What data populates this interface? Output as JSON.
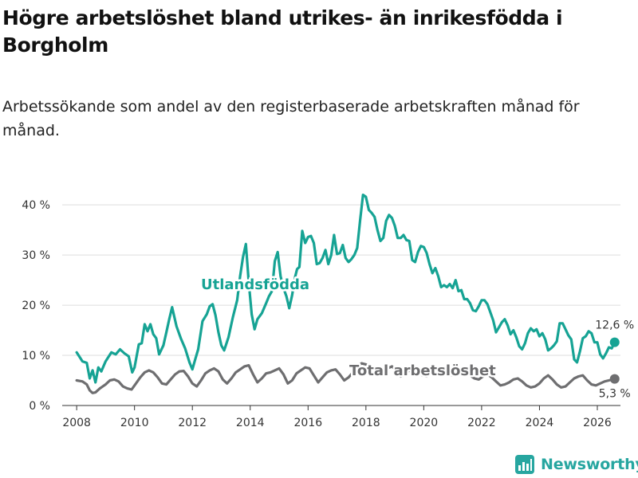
{
  "title": "Högre arbetslöshet bland utrikes- än inrikesfödda i Borgholm",
  "subtitle": "Arbetssökande som andel av den registerbaserade arbetskraften månad för månad.",
  "brand": {
    "name": "Newsworthy",
    "color": "#27a6a0"
  },
  "colors": {
    "utlandsfodda": "#16a394",
    "total": "#6e6e70",
    "grid": "#dddddd",
    "axis": "#333333"
  },
  "chart_data": {
    "type": "line",
    "title": "Högre arbetslöshet bland utrikes- än inrikesfödda i Borgholm",
    "xlabel": "",
    "ylabel": "",
    "xlim": [
      2007.5,
      2026.8
    ],
    "ylim": [
      0,
      44
    ],
    "x_ticks": [
      2008,
      2010,
      2012,
      2014,
      2016,
      2018,
      2020,
      2022,
      2024,
      2026
    ],
    "y_ticks": [
      0,
      10,
      20,
      30,
      40
    ],
    "y_tick_labels": [
      "0 %",
      "10 %",
      "20 %",
      "30 %",
      "40 %"
    ],
    "series": [
      {
        "name": "Utlandsfödda",
        "label": "Utlandsfödda",
        "end_label": "12,6 %",
        "points": [
          [
            2008.0,
            10.6
          ],
          [
            2008.2,
            8.8
          ],
          [
            2008.35,
            8.5
          ],
          [
            2008.45,
            5.4
          ],
          [
            2008.55,
            7.0
          ],
          [
            2008.65,
            4.6
          ],
          [
            2008.75,
            7.6
          ],
          [
            2008.85,
            6.8
          ],
          [
            2009.0,
            8.8
          ],
          [
            2009.2,
            10.6
          ],
          [
            2009.35,
            10.2
          ],
          [
            2009.5,
            11.2
          ],
          [
            2009.65,
            10.4
          ],
          [
            2009.8,
            9.8
          ],
          [
            2009.92,
            6.6
          ],
          [
            2010.0,
            7.6
          ],
          [
            2010.15,
            12.2
          ],
          [
            2010.25,
            12.4
          ],
          [
            2010.35,
            16.2
          ],
          [
            2010.45,
            14.8
          ],
          [
            2010.55,
            16.2
          ],
          [
            2010.65,
            14.2
          ],
          [
            2010.75,
            13.4
          ],
          [
            2010.85,
            10.2
          ],
          [
            2011.0,
            12.0
          ],
          [
            2011.1,
            14.6
          ],
          [
            2011.2,
            17.2
          ],
          [
            2011.3,
            19.6
          ],
          [
            2011.45,
            15.8
          ],
          [
            2011.6,
            13.4
          ],
          [
            2011.75,
            11.4
          ],
          [
            2011.9,
            8.6
          ],
          [
            2012.0,
            7.2
          ],
          [
            2012.1,
            9.2
          ],
          [
            2012.2,
            11.2
          ],
          [
            2012.35,
            16.8
          ],
          [
            2012.5,
            18.2
          ],
          [
            2012.6,
            19.8
          ],
          [
            2012.7,
            20.2
          ],
          [
            2012.8,
            18.0
          ],
          [
            2012.9,
            14.6
          ],
          [
            2013.0,
            12.0
          ],
          [
            2013.1,
            11.0
          ],
          [
            2013.25,
            13.6
          ],
          [
            2013.4,
            17.6
          ],
          [
            2013.55,
            21.0
          ],
          [
            2013.65,
            25.8
          ],
          [
            2013.75,
            29.6
          ],
          [
            2013.85,
            32.2
          ],
          [
            2013.95,
            24.6
          ],
          [
            2014.05,
            18.2
          ],
          [
            2014.15,
            15.2
          ],
          [
            2014.25,
            17.2
          ],
          [
            2014.4,
            18.4
          ],
          [
            2014.55,
            20.4
          ],
          [
            2014.65,
            21.8
          ],
          [
            2014.75,
            22.8
          ],
          [
            2014.85,
            28.8
          ],
          [
            2014.95,
            30.6
          ],
          [
            2015.05,
            25.8
          ],
          [
            2015.15,
            23.4
          ],
          [
            2015.25,
            21.8
          ],
          [
            2015.35,
            19.4
          ],
          [
            2015.45,
            22.0
          ],
          [
            2015.55,
            25.6
          ],
          [
            2015.62,
            27.2
          ],
          [
            2015.7,
            27.6
          ],
          [
            2015.8,
            34.8
          ],
          [
            2015.9,
            32.4
          ],
          [
            2016.0,
            33.6
          ],
          [
            2016.1,
            33.8
          ],
          [
            2016.2,
            32.4
          ],
          [
            2016.3,
            28.2
          ],
          [
            2016.4,
            28.4
          ],
          [
            2016.5,
            29.4
          ],
          [
            2016.6,
            31.0
          ],
          [
            2016.7,
            28.2
          ],
          [
            2016.8,
            30.0
          ],
          [
            2016.9,
            34.0
          ],
          [
            2017.0,
            30.2
          ],
          [
            2017.1,
            30.4
          ],
          [
            2017.2,
            32.0
          ],
          [
            2017.3,
            29.4
          ],
          [
            2017.4,
            28.6
          ],
          [
            2017.5,
            29.2
          ],
          [
            2017.6,
            30.0
          ],
          [
            2017.7,
            31.4
          ],
          [
            2017.8,
            37.0
          ],
          [
            2017.9,
            42.0
          ],
          [
            2018.0,
            41.6
          ],
          [
            2018.1,
            39.0
          ],
          [
            2018.2,
            38.4
          ],
          [
            2018.3,
            37.6
          ],
          [
            2018.4,
            35.0
          ],
          [
            2018.5,
            32.8
          ],
          [
            2018.6,
            33.4
          ],
          [
            2018.7,
            36.8
          ],
          [
            2018.8,
            38.0
          ],
          [
            2018.9,
            37.4
          ],
          [
            2019.0,
            35.8
          ],
          [
            2019.1,
            33.4
          ],
          [
            2019.2,
            33.4
          ],
          [
            2019.3,
            34.0
          ],
          [
            2019.4,
            33.0
          ],
          [
            2019.5,
            32.8
          ],
          [
            2019.6,
            29.0
          ],
          [
            2019.7,
            28.6
          ],
          [
            2019.8,
            30.6
          ],
          [
            2019.9,
            31.8
          ],
          [
            2020.0,
            31.6
          ],
          [
            2020.1,
            30.4
          ],
          [
            2020.2,
            28.2
          ],
          [
            2020.3,
            26.4
          ],
          [
            2020.4,
            27.4
          ],
          [
            2020.5,
            25.8
          ],
          [
            2020.6,
            23.6
          ],
          [
            2020.7,
            24.0
          ],
          [
            2020.8,
            23.6
          ],
          [
            2020.9,
            24.2
          ],
          [
            2021.0,
            23.4
          ],
          [
            2021.1,
            25.0
          ],
          [
            2021.2,
            22.8
          ],
          [
            2021.3,
            23.0
          ],
          [
            2021.4,
            21.2
          ],
          [
            2021.5,
            21.2
          ],
          [
            2021.6,
            20.4
          ],
          [
            2021.7,
            19.0
          ],
          [
            2021.8,
            18.8
          ],
          [
            2021.9,
            19.8
          ],
          [
            2022.0,
            21.0
          ],
          [
            2022.1,
            21.0
          ],
          [
            2022.2,
            20.2
          ],
          [
            2022.3,
            18.6
          ],
          [
            2022.4,
            17.0
          ],
          [
            2022.5,
            14.6
          ],
          [
            2022.6,
            15.6
          ],
          [
            2022.7,
            16.6
          ],
          [
            2022.8,
            17.2
          ],
          [
            2022.9,
            16.0
          ],
          [
            2023.0,
            14.2
          ],
          [
            2023.1,
            15.0
          ],
          [
            2023.2,
            13.6
          ],
          [
            2023.3,
            11.8
          ],
          [
            2023.4,
            11.2
          ],
          [
            2023.5,
            12.4
          ],
          [
            2023.6,
            14.4
          ],
          [
            2023.7,
            15.4
          ],
          [
            2023.8,
            14.8
          ],
          [
            2023.9,
            15.2
          ],
          [
            2024.0,
            13.8
          ],
          [
            2024.1,
            14.4
          ],
          [
            2024.2,
            13.2
          ],
          [
            2024.3,
            11.0
          ],
          [
            2024.4,
            11.4
          ],
          [
            2024.5,
            12.0
          ],
          [
            2024.6,
            12.8
          ],
          [
            2024.7,
            16.4
          ],
          [
            2024.8,
            16.4
          ],
          [
            2024.9,
            15.2
          ],
          [
            2025.0,
            14.0
          ],
          [
            2025.1,
            13.2
          ],
          [
            2025.2,
            9.2
          ],
          [
            2025.3,
            8.6
          ],
          [
            2025.4,
            10.8
          ],
          [
            2025.5,
            13.4
          ],
          [
            2025.6,
            13.8
          ],
          [
            2025.7,
            14.8
          ],
          [
            2025.8,
            14.4
          ],
          [
            2025.9,
            12.6
          ],
          [
            2026.0,
            12.6
          ],
          [
            2026.1,
            10.2
          ],
          [
            2026.2,
            9.4
          ],
          [
            2026.3,
            10.4
          ],
          [
            2026.4,
            11.6
          ],
          [
            2026.5,
            11.4
          ],
          [
            2026.6,
            12.6
          ]
        ]
      },
      {
        "name": "Total arbetslöshet",
        "label": "Total arbetslöshet",
        "end_label": "5,3 %",
        "points": [
          [
            2008.0,
            5.0
          ],
          [
            2008.2,
            4.8
          ],
          [
            2008.35,
            4.2
          ],
          [
            2008.45,
            3.0
          ],
          [
            2008.55,
            2.5
          ],
          [
            2008.65,
            2.6
          ],
          [
            2008.8,
            3.4
          ],
          [
            2009.0,
            4.2
          ],
          [
            2009.15,
            5.0
          ],
          [
            2009.3,
            5.2
          ],
          [
            2009.45,
            4.8
          ],
          [
            2009.6,
            3.8
          ],
          [
            2009.75,
            3.4
          ],
          [
            2009.9,
            3.2
          ],
          [
            2010.05,
            4.4
          ],
          [
            2010.2,
            5.6
          ],
          [
            2010.35,
            6.6
          ],
          [
            2010.5,
            7.0
          ],
          [
            2010.65,
            6.6
          ],
          [
            2010.8,
            5.6
          ],
          [
            2010.95,
            4.4
          ],
          [
            2011.1,
            4.2
          ],
          [
            2011.25,
            5.2
          ],
          [
            2011.4,
            6.2
          ],
          [
            2011.55,
            6.8
          ],
          [
            2011.7,
            6.9
          ],
          [
            2011.85,
            5.8
          ],
          [
            2012.0,
            4.4
          ],
          [
            2012.15,
            3.8
          ],
          [
            2012.3,
            5.0
          ],
          [
            2012.45,
            6.4
          ],
          [
            2012.6,
            7.0
          ],
          [
            2012.75,
            7.4
          ],
          [
            2012.9,
            6.8
          ],
          [
            2013.05,
            5.2
          ],
          [
            2013.2,
            4.4
          ],
          [
            2013.35,
            5.4
          ],
          [
            2013.5,
            6.6
          ],
          [
            2013.65,
            7.2
          ],
          [
            2013.8,
            7.8
          ],
          [
            2013.95,
            8.0
          ],
          [
            2014.1,
            6.2
          ],
          [
            2014.25,
            4.6
          ],
          [
            2014.4,
            5.4
          ],
          [
            2014.55,
            6.4
          ],
          [
            2014.7,
            6.6
          ],
          [
            2014.85,
            7.0
          ],
          [
            2015.0,
            7.4
          ],
          [
            2015.15,
            6.2
          ],
          [
            2015.3,
            4.4
          ],
          [
            2015.45,
            5.0
          ],
          [
            2015.6,
            6.4
          ],
          [
            2015.75,
            7.0
          ],
          [
            2015.9,
            7.6
          ],
          [
            2016.05,
            7.4
          ],
          [
            2016.2,
            6.0
          ],
          [
            2016.35,
            4.6
          ],
          [
            2016.5,
            5.6
          ],
          [
            2016.65,
            6.6
          ],
          [
            2016.8,
            7.0
          ],
          [
            2016.95,
            7.2
          ],
          [
            2017.1,
            6.2
          ],
          [
            2017.25,
            5.0
          ],
          [
            2017.4,
            5.6
          ],
          [
            2017.55,
            6.6
          ],
          [
            2017.7,
            7.8
          ],
          [
            2017.85,
            8.4
          ],
          [
            2018.0,
            8.2
          ],
          [
            2018.15,
            7.8
          ],
          [
            2018.3,
            6.6
          ],
          [
            2018.45,
            6.0
          ],
          [
            2018.6,
            6.6
          ],
          [
            2018.75,
            7.4
          ],
          [
            2018.9,
            7.8
          ],
          [
            2019.05,
            7.0
          ],
          [
            2019.2,
            5.8
          ],
          [
            2019.35,
            6.2
          ],
          [
            2019.5,
            7.0
          ],
          [
            2019.65,
            7.4
          ],
          [
            2019.8,
            7.0
          ],
          [
            2019.95,
            6.0
          ],
          [
            2020.1,
            5.8
          ],
          [
            2020.25,
            6.8
          ],
          [
            2020.4,
            7.2
          ],
          [
            2020.55,
            7.6
          ],
          [
            2020.7,
            7.0
          ],
          [
            2020.85,
            6.2
          ],
          [
            2021.0,
            6.0
          ],
          [
            2021.15,
            6.6
          ],
          [
            2021.3,
            7.0
          ],
          [
            2021.45,
            6.8
          ],
          [
            2021.6,
            6.0
          ],
          [
            2021.75,
            5.4
          ],
          [
            2021.9,
            5.2
          ],
          [
            2022.05,
            5.8
          ],
          [
            2022.2,
            6.2
          ],
          [
            2022.35,
            5.6
          ],
          [
            2022.5,
            4.8
          ],
          [
            2022.65,
            4.0
          ],
          [
            2022.8,
            4.2
          ],
          [
            2022.95,
            4.6
          ],
          [
            2023.1,
            5.2
          ],
          [
            2023.25,
            5.4
          ],
          [
            2023.4,
            4.8
          ],
          [
            2023.55,
            4.0
          ],
          [
            2023.7,
            3.6
          ],
          [
            2023.85,
            3.8
          ],
          [
            2024.0,
            4.4
          ],
          [
            2024.15,
            5.4
          ],
          [
            2024.3,
            6.0
          ],
          [
            2024.45,
            5.2
          ],
          [
            2024.6,
            4.2
          ],
          [
            2024.75,
            3.6
          ],
          [
            2024.9,
            3.8
          ],
          [
            2025.05,
            4.6
          ],
          [
            2025.2,
            5.4
          ],
          [
            2025.35,
            5.8
          ],
          [
            2025.5,
            6.0
          ],
          [
            2025.65,
            5.0
          ],
          [
            2025.8,
            4.2
          ],
          [
            2025.95,
            4.0
          ],
          [
            2026.1,
            4.4
          ],
          [
            2026.25,
            4.8
          ],
          [
            2026.4,
            5.0
          ],
          [
            2026.6,
            5.3
          ]
        ]
      }
    ]
  }
}
